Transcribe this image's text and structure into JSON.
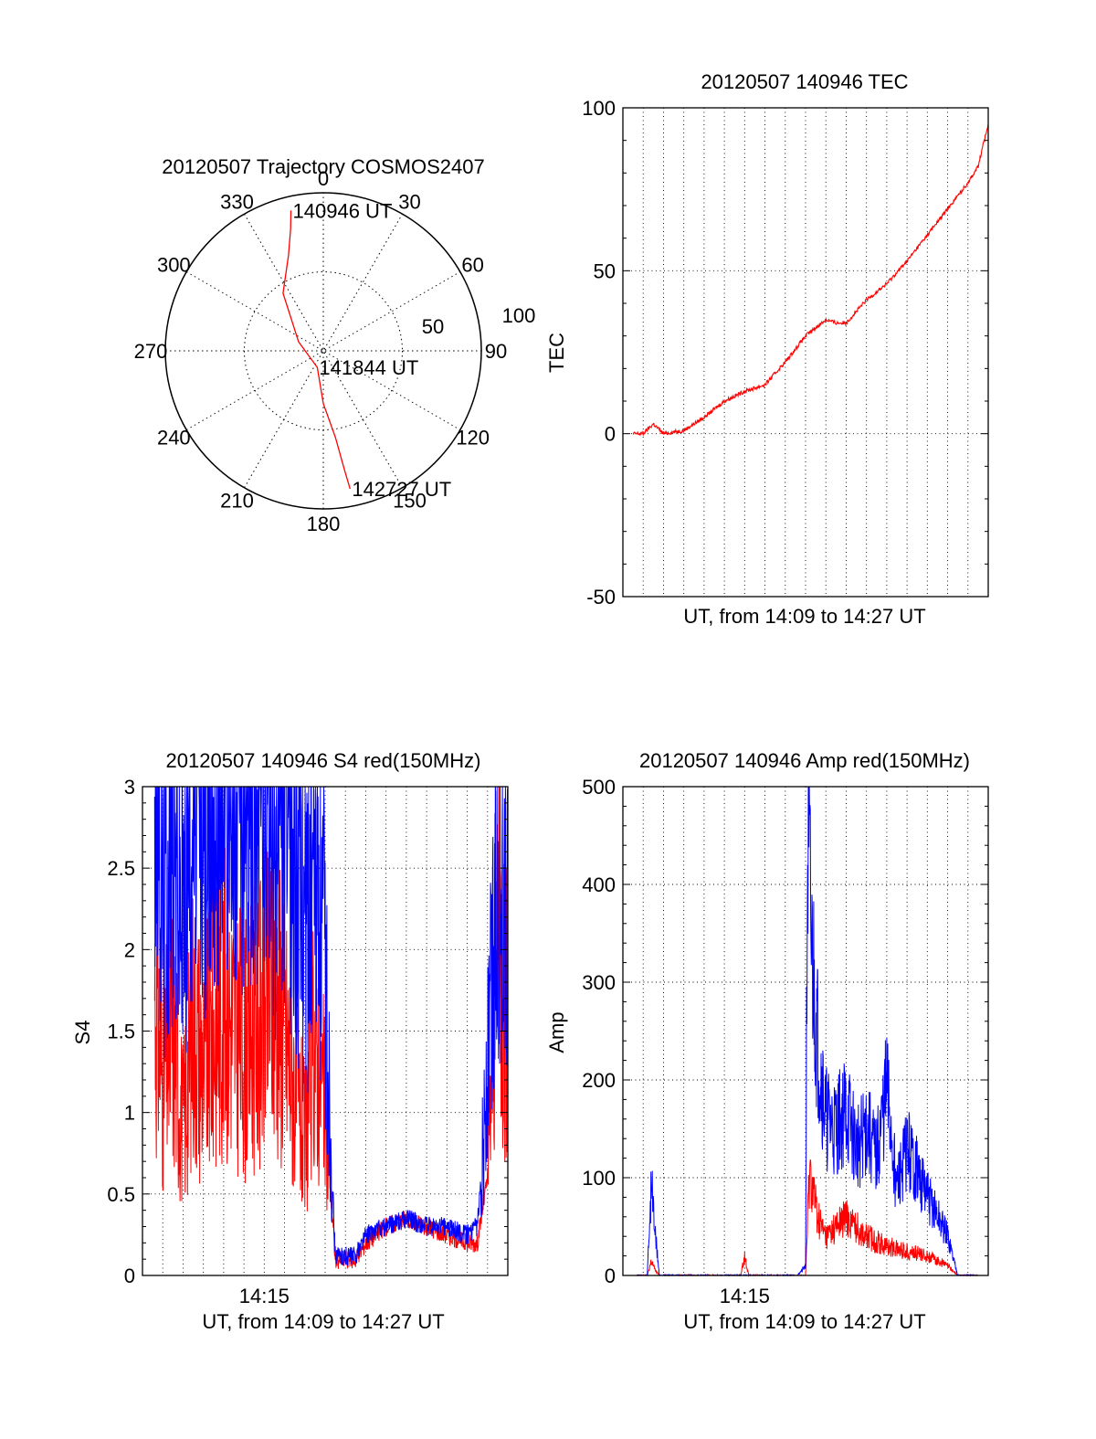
{
  "chart_data": [
    {
      "id": "trajectory",
      "type": "polar",
      "title": "20120507 Trajectory COSMOS2407",
      "azimuth_labels": [
        "0",
        "30",
        "60",
        "90",
        "120",
        "150",
        "180",
        "210",
        "240",
        "270",
        "300",
        "330"
      ],
      "radius_labels": [
        "50",
        "100"
      ],
      "trajectory": {
        "color": "#ff0000",
        "points": [
          {
            "az": 347,
            "el": 8
          },
          {
            "az": 345,
            "el": 18
          },
          {
            "az": 340,
            "el": 32
          },
          {
            "az": 325,
            "el": 50
          },
          {
            "az": 290,
            "el": 75
          },
          {
            "az": 200,
            "el": 80
          },
          {
            "az": 180,
            "el": 60
          },
          {
            "az": 172,
            "el": 40
          },
          {
            "az": 170,
            "el": 22
          },
          {
            "az": 169,
            "el": 10
          }
        ]
      },
      "annotations": [
        {
          "text": "140946 UT",
          "az": 347,
          "el": 8
        },
        {
          "text": "141844 UT",
          "az": 200,
          "el": 80
        },
        {
          "text": "142727 UT",
          "az": 169,
          "el": 10
        }
      ]
    },
    {
      "id": "tec",
      "type": "line",
      "title": "20120507 140946 TEC",
      "xlabel": "UT, from 14:09 to 14:27 UT",
      "ylabel": "TEC",
      "xlim": [
        0,
        18
      ],
      "ylim": [
        -50,
        100
      ],
      "yticks": [
        "100",
        "50",
        "0",
        "-50"
      ],
      "grid": true,
      "series": [
        {
          "color": "#ff0000",
          "x": [
            0.5,
            1.0,
            1.5,
            2.0,
            3.0,
            4.0,
            5.0,
            6.0,
            7.0,
            8.0,
            9.0,
            10.0,
            10.5,
            11.0,
            12.0,
            13.0,
            14.0,
            15.0,
            16.0,
            17.0,
            17.5,
            18.0
          ],
          "y": [
            0,
            0,
            3,
            0,
            1,
            5,
            10,
            13,
            15,
            22,
            30,
            35,
            34,
            34,
            41,
            46,
            53,
            61,
            69,
            77,
            82,
            95
          ]
        }
      ]
    },
    {
      "id": "s4",
      "type": "line",
      "title": "20120507 140946 S4 red(150MHz)",
      "xlabel": "UT, from 14:09 to 14:27 UT",
      "ylabel": "S4",
      "xlim": [
        0,
        18
      ],
      "ylim": [
        0,
        3
      ],
      "xticks": [
        {
          "x": 6,
          "label": "14:15"
        }
      ],
      "yticks": [
        "3",
        "2.5",
        "2",
        "1.5",
        "1",
        "0.5",
        "0"
      ],
      "grid": true,
      "series": [
        {
          "color": "#ff0000",
          "x": [
            0.6,
            1.0,
            1.5,
            2.0,
            2.5,
            3.0,
            4.0,
            5.0,
            6.0,
            6.5,
            7.0,
            8.0,
            8.5,
            9.0,
            9.5,
            10.5,
            11.0,
            12.0,
            13.0,
            14.0,
            15.0,
            16.0,
            16.5,
            17.0,
            17.5,
            18.0
          ],
          "y": [
            1.8,
            1.2,
            1.5,
            0.9,
            1.6,
            1.3,
            1.7,
            1.4,
            1.6,
            1.8,
            1.5,
            0.8,
            1.5,
            1.0,
            0.1,
            0.1,
            0.2,
            0.3,
            0.35,
            0.3,
            0.25,
            0.2,
            0.2,
            0.6,
            2.2,
            1.5
          ]
        },
        {
          "color": "#0000ff",
          "x": [
            0.6,
            1.0,
            1.5,
            2.0,
            2.5,
            3.0,
            4.0,
            5.0,
            6.0,
            6.5,
            7.0,
            8.0,
            8.5,
            9.0,
            9.5,
            10.5,
            11.0,
            12.0,
            13.0,
            14.0,
            15.0,
            16.0,
            16.5,
            17.0,
            17.5,
            18.0
          ],
          "y": [
            3.0,
            2.4,
            2.7,
            2.2,
            2.9,
            2.6,
            3.0,
            2.8,
            3.0,
            2.6,
            2.8,
            2.2,
            2.6,
            1.8,
            0.12,
            0.12,
            0.25,
            0.3,
            0.35,
            0.3,
            0.3,
            0.25,
            0.3,
            1.2,
            2.6,
            2.0
          ]
        }
      ]
    },
    {
      "id": "amp",
      "type": "line",
      "title": "20120507 140946 Amp red(150MHz)",
      "xlabel": "UT, from 14:09 to 14:27 UT",
      "ylabel": "Amp",
      "xlim": [
        0,
        18
      ],
      "ylim": [
        0,
        500
      ],
      "xticks": [
        {
          "x": 6,
          "label": "14:15"
        }
      ],
      "yticks": [
        "500",
        "400",
        "300",
        "200",
        "100",
        "0"
      ],
      "grid": true,
      "series": [
        {
          "color": "#ff0000",
          "x": [
            0.7,
            1.2,
            1.4,
            1.6,
            1.8,
            5.8,
            6.0,
            6.2,
            9.0,
            9.2,
            9.6,
            10.0,
            11.0,
            12.0,
            13.0,
            14.0,
            15.0,
            16.0,
            16.5,
            17.5
          ],
          "y": [
            0,
            0,
            15,
            5,
            0,
            0,
            20,
            0,
            0,
            110,
            60,
            40,
            60,
            40,
            30,
            25,
            20,
            10,
            0,
            0
          ]
        },
        {
          "color": "#0000ff",
          "x": [
            0.7,
            1.2,
            1.4,
            1.6,
            1.8,
            8.6,
            9.0,
            9.1,
            9.3,
            9.6,
            10.0,
            10.5,
            11.0,
            11.5,
            12.0,
            12.5,
            13.0,
            13.5,
            14.0,
            15.0,
            16.0,
            16.5,
            17.5
          ],
          "y": [
            0,
            0,
            95,
            40,
            0,
            0,
            10,
            440,
            330,
            240,
            160,
            150,
            170,
            130,
            150,
            120,
            190,
            90,
            130,
            80,
            40,
            0,
            0
          ]
        }
      ]
    }
  ]
}
